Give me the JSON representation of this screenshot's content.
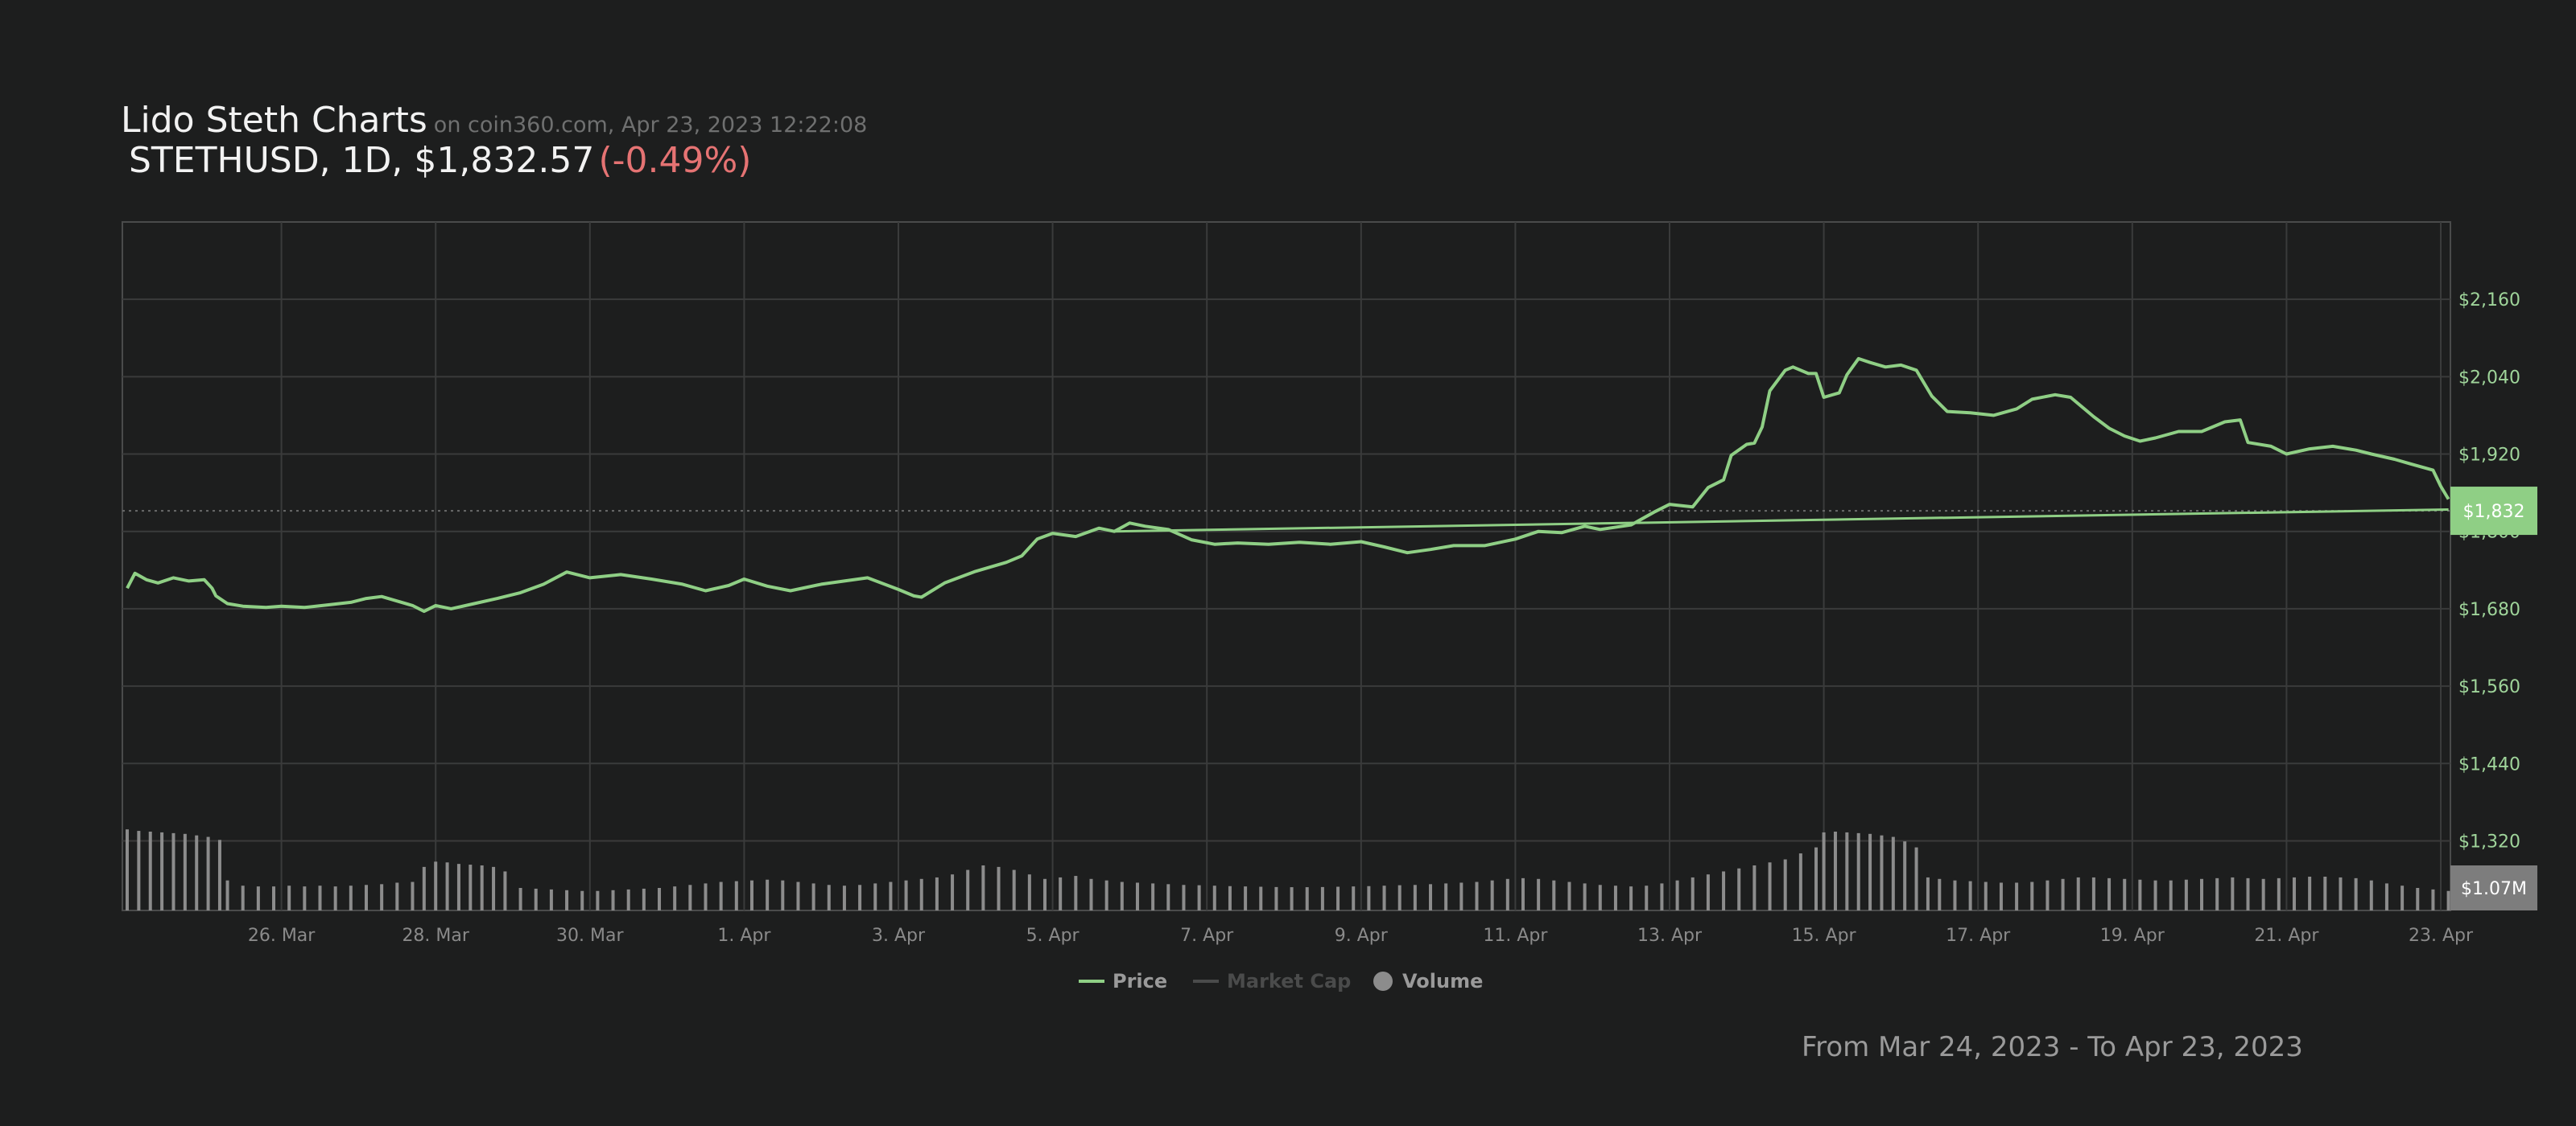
{
  "header": {
    "title": "Lido Steth Charts",
    "source": "on coin360.com, Apr 23, 2023 12:22:08",
    "ticker": "STETHUSD, 1D, $1,832.57",
    "change": "(-0.49%)"
  },
  "footer": {
    "date_range": "From Mar 24, 2023 - To Apr 23, 2023"
  },
  "colors": {
    "background": "#1d1e1e",
    "price_line": "#8fcf85",
    "volume_bar": "#8c8c8c",
    "grid": "#3a3b3b",
    "axis_label": "#9fd49a",
    "x_label": "#8a8a8a",
    "negative": "#e57373",
    "price_badge": "#8fcf85",
    "volume_badge": "#7d7d7d"
  },
  "chart_data": {
    "type": "line",
    "title": "Lido Steth Charts",
    "x_unit": "days since Mar 24, 2023",
    "xlim": [
      0,
      30.1
    ],
    "x_ticks": [
      {
        "label": "26. Mar",
        "day": 2
      },
      {
        "label": "28. Mar",
        "day": 4
      },
      {
        "label": "30. Mar",
        "day": 6
      },
      {
        "label": "1. Apr",
        "day": 8
      },
      {
        "label": "3. Apr",
        "day": 10
      },
      {
        "label": "5. Apr",
        "day": 12
      },
      {
        "label": "7. Apr",
        "day": 14
      },
      {
        "label": "9. Apr",
        "day": 16
      },
      {
        "label": "11. Apr",
        "day": 18
      },
      {
        "label": "13. Apr",
        "day": 20
      },
      {
        "label": "15. Apr",
        "day": 22
      },
      {
        "label": "17. Apr",
        "day": 24
      },
      {
        "label": "19. Apr",
        "day": 26
      },
      {
        "label": "21. Apr",
        "day": 28
      },
      {
        "label": "23. Apr",
        "day": 30
      }
    ],
    "ylim": [
      1212,
      2280
    ],
    "y_ticks": [
      {
        "label": "$2,160",
        "value": 2160
      },
      {
        "label": "$2,040",
        "value": 2040
      },
      {
        "label": "$1,920",
        "value": 1920
      },
      {
        "label": "$1,800",
        "value": 1800
      },
      {
        "label": "$1,680",
        "value": 1680
      },
      {
        "label": "$1,560",
        "value": 1560
      },
      {
        "label": "$1,440",
        "value": 1440
      },
      {
        "label": "$1,320",
        "value": 1320
      }
    ],
    "grid": true,
    "legend_position": "bottom-center",
    "current_price": {
      "label": "$1,832",
      "value": 1832
    },
    "current_volume": {
      "label": "$1.07M"
    },
    "series": [
      {
        "name": "Price",
        "color": "#8fcf85",
        "points": [
          [
            0.0,
            1712
          ],
          [
            0.1,
            1735
          ],
          [
            0.25,
            1725
          ],
          [
            0.4,
            1720
          ],
          [
            0.6,
            1728
          ],
          [
            0.8,
            1723
          ],
          [
            1.0,
            1725
          ],
          [
            1.1,
            1712
          ],
          [
            1.15,
            1700
          ],
          [
            1.3,
            1688
          ],
          [
            1.5,
            1684
          ],
          [
            1.8,
            1682
          ],
          [
            2.0,
            1684
          ],
          [
            2.3,
            1682
          ],
          [
            2.6,
            1686
          ],
          [
            2.9,
            1690
          ],
          [
            3.1,
            1696
          ],
          [
            3.3,
            1699
          ],
          [
            3.5,
            1692
          ],
          [
            3.7,
            1685
          ],
          [
            3.85,
            1676
          ],
          [
            4.0,
            1685
          ],
          [
            4.2,
            1680
          ],
          [
            4.5,
            1688
          ],
          [
            4.8,
            1696
          ],
          [
            5.1,
            1705
          ],
          [
            5.4,
            1718
          ],
          [
            5.7,
            1737
          ],
          [
            6.0,
            1728
          ],
          [
            6.4,
            1733
          ],
          [
            6.8,
            1726
          ],
          [
            7.2,
            1718
          ],
          [
            7.5,
            1708
          ],
          [
            7.8,
            1716
          ],
          [
            8.0,
            1726
          ],
          [
            8.3,
            1715
          ],
          [
            8.6,
            1708
          ],
          [
            9.0,
            1718
          ],
          [
            9.3,
            1723
          ],
          [
            9.6,
            1728
          ],
          [
            10.0,
            1710
          ],
          [
            10.2,
            1700
          ],
          [
            10.3,
            1698
          ],
          [
            10.6,
            1720
          ],
          [
            11.0,
            1738
          ],
          [
            11.4,
            1752
          ],
          [
            11.6,
            1762
          ],
          [
            11.8,
            1788
          ],
          [
            12.0,
            1797
          ],
          [
            12.3,
            1792
          ],
          [
            12.6,
            1805
          ],
          [
            12.8,
            1800
          ],
          [
            13.0,
            1813
          ],
          [
            13.2,
            1808
          ],
          [
            13.5,
            1803
          ],
          [
            13.8,
            1787
          ],
          [
            14.1,
            1780
          ],
          [
            14.4,
            1782
          ],
          [
            14.8,
            1780
          ],
          [
            15.2,
            1783
          ],
          [
            15.6,
            1780
          ],
          [
            16.0,
            1784
          ],
          [
            16.3,
            1776
          ],
          [
            16.6,
            1767
          ],
          [
            16.9,
            1772
          ],
          [
            17.2,
            1778
          ],
          [
            17.6,
            1778
          ],
          [
            18.0,
            1788
          ],
          [
            18.3,
            1800
          ],
          [
            18.6,
            1798
          ],
          [
            18.9,
            1808
          ],
          [
            19.1,
            1803
          ],
          [
            19.5,
            1810
          ],
          [
            19.8,
            1830
          ],
          [
            20.0,
            1842
          ],
          [
            20.3,
            1838
          ],
          [
            20.5,
            1868
          ],
          [
            20.7,
            1880
          ],
          [
            20.8,
            1918
          ],
          [
            21.0,
            1935
          ],
          [
            21.1,
            1937
          ],
          [
            21.2,
            1962
          ],
          [
            21.3,
            2018
          ],
          [
            21.5,
            2050
          ],
          [
            21.6,
            2055
          ],
          [
            21.8,
            2045
          ],
          [
            21.9,
            2045
          ],
          [
            22.0,
            2008
          ],
          [
            22.2,
            2015
          ],
          [
            22.3,
            2043
          ],
          [
            22.45,
            2068
          ],
          [
            22.6,
            2062
          ],
          [
            22.8,
            2055
          ],
          [
            23.0,
            2058
          ],
          [
            23.2,
            2050
          ],
          [
            23.4,
            2010
          ],
          [
            23.6,
            1986
          ],
          [
            23.9,
            1984
          ],
          [
            24.2,
            1980
          ],
          [
            24.5,
            1990
          ],
          [
            24.7,
            2005
          ],
          [
            25.0,
            2012
          ],
          [
            25.2,
            2008
          ],
          [
            25.5,
            1978
          ],
          [
            25.7,
            1960
          ],
          [
            25.9,
            1948
          ],
          [
            26.1,
            1940
          ],
          [
            26.3,
            1945
          ],
          [
            26.6,
            1955
          ],
          [
            26.9,
            1955
          ],
          [
            27.2,
            1970
          ],
          [
            27.4,
            1973
          ],
          [
            27.5,
            1938
          ],
          [
            27.8,
            1932
          ],
          [
            28.0,
            1920
          ],
          [
            28.3,
            1928
          ],
          [
            28.6,
            1932
          ],
          [
            28.9,
            1926
          ],
          [
            29.1,
            1920
          ],
          [
            29.4,
            1912
          ],
          [
            29.6,
            1905
          ],
          [
            29.9,
            1895
          ],
          [
            30.0,
            1870
          ],
          [
            30.1,
            1850
          ]
        ]
      },
      {
        "name": "Market Cap",
        "color": "#555555",
        "points": [
          [
            12.8,
            1800
          ],
          [
            30.1,
            1834
          ]
        ]
      }
    ],
    "volume": {
      "name": "Volume",
      "color": "#8c8c8c",
      "ylim": [
        0,
        600
      ],
      "bars": [
        [
          0.0,
          540
        ],
        [
          0.15,
          530
        ],
        [
          0.3,
          525
        ],
        [
          0.45,
          520
        ],
        [
          0.6,
          515
        ],
        [
          0.75,
          510
        ],
        [
          0.9,
          500
        ],
        [
          1.05,
          490
        ],
        [
          1.2,
          470
        ],
        [
          1.3,
          200
        ],
        [
          1.5,
          165
        ],
        [
          1.7,
          160
        ],
        [
          1.9,
          160
        ],
        [
          2.1,
          165
        ],
        [
          2.3,
          160
        ],
        [
          2.5,
          165
        ],
        [
          2.7,
          160
        ],
        [
          2.9,
          165
        ],
        [
          3.1,
          170
        ],
        [
          3.3,
          175
        ],
        [
          3.5,
          185
        ],
        [
          3.7,
          190
        ],
        [
          3.85,
          290
        ],
        [
          4.0,
          325
        ],
        [
          4.15,
          320
        ],
        [
          4.3,
          310
        ],
        [
          4.45,
          305
        ],
        [
          4.6,
          300
        ],
        [
          4.75,
          290
        ],
        [
          4.9,
          260
        ],
        [
          5.1,
          150
        ],
        [
          5.3,
          145
        ],
        [
          5.5,
          140
        ],
        [
          5.7,
          135
        ],
        [
          5.9,
          130
        ],
        [
          6.1,
          130
        ],
        [
          6.3,
          135
        ],
        [
          6.5,
          140
        ],
        [
          6.7,
          145
        ],
        [
          6.9,
          150
        ],
        [
          7.1,
          160
        ],
        [
          7.3,
          170
        ],
        [
          7.5,
          180
        ],
        [
          7.7,
          190
        ],
        [
          7.9,
          195
        ],
        [
          8.1,
          200
        ],
        [
          8.3,
          205
        ],
        [
          8.5,
          200
        ],
        [
          8.7,
          190
        ],
        [
          8.9,
          180
        ],
        [
          9.1,
          170
        ],
        [
          9.3,
          165
        ],
        [
          9.5,
          170
        ],
        [
          9.7,
          180
        ],
        [
          9.9,
          190
        ],
        [
          10.1,
          200
        ],
        [
          10.3,
          210
        ],
        [
          10.5,
          220
        ],
        [
          10.7,
          240
        ],
        [
          10.9,
          270
        ],
        [
          11.1,
          300
        ],
        [
          11.3,
          290
        ],
        [
          11.5,
          270
        ],
        [
          11.7,
          240
        ],
        [
          11.9,
          210
        ],
        [
          12.1,
          220
        ],
        [
          12.3,
          230
        ],
        [
          12.5,
          210
        ],
        [
          12.7,
          200
        ],
        [
          12.9,
          190
        ],
        [
          13.1,
          185
        ],
        [
          13.3,
          180
        ],
        [
          13.5,
          175
        ],
        [
          13.7,
          170
        ],
        [
          13.9,
          168
        ],
        [
          14.1,
          165
        ],
        [
          14.3,
          162
        ],
        [
          14.5,
          160
        ],
        [
          14.7,
          158
        ],
        [
          14.9,
          156
        ],
        [
          15.1,
          155
        ],
        [
          15.3,
          155
        ],
        [
          15.5,
          156
        ],
        [
          15.7,
          158
        ],
        [
          15.9,
          160
        ],
        [
          16.1,
          162
        ],
        [
          16.3,
          165
        ],
        [
          16.5,
          168
        ],
        [
          16.7,
          170
        ],
        [
          16.9,
          175
        ],
        [
          17.1,
          180
        ],
        [
          17.3,
          185
        ],
        [
          17.5,
          190
        ],
        [
          17.7,
          200
        ],
        [
          17.9,
          210
        ],
        [
          18.1,
          215
        ],
        [
          18.3,
          210
        ],
        [
          18.5,
          200
        ],
        [
          18.7,
          190
        ],
        [
          18.9,
          180
        ],
        [
          19.1,
          170
        ],
        [
          19.3,
          165
        ],
        [
          19.5,
          160
        ],
        [
          19.7,
          165
        ],
        [
          19.9,
          180
        ],
        [
          20.1,
          200
        ],
        [
          20.3,
          220
        ],
        [
          20.5,
          240
        ],
        [
          20.7,
          260
        ],
        [
          20.9,
          280
        ],
        [
          21.1,
          300
        ],
        [
          21.3,
          320
        ],
        [
          21.5,
          340
        ],
        [
          21.7,
          380
        ],
        [
          21.9,
          420
        ],
        [
          22.0,
          520
        ],
        [
          22.15,
          525
        ],
        [
          22.3,
          520
        ],
        [
          22.45,
          515
        ],
        [
          22.6,
          510
        ],
        [
          22.75,
          500
        ],
        [
          22.9,
          490
        ],
        [
          23.05,
          460
        ],
        [
          23.2,
          420
        ],
        [
          23.35,
          220
        ],
        [
          23.5,
          210
        ],
        [
          23.7,
          200
        ],
        [
          23.9,
          195
        ],
        [
          24.1,
          190
        ],
        [
          24.3,
          185
        ],
        [
          24.5,
          185
        ],
        [
          24.7,
          190
        ],
        [
          24.9,
          200
        ],
        [
          25.1,
          210
        ],
        [
          25.3,
          220
        ],
        [
          25.5,
          220
        ],
        [
          25.7,
          215
        ],
        [
          25.9,
          210
        ],
        [
          26.1,
          205
        ],
        [
          26.3,
          200
        ],
        [
          26.5,
          200
        ],
        [
          26.7,
          205
        ],
        [
          26.9,
          210
        ],
        [
          27.1,
          215
        ],
        [
          27.3,
          220
        ],
        [
          27.5,
          215
        ],
        [
          27.7,
          210
        ],
        [
          27.9,
          215
        ],
        [
          28.1,
          220
        ],
        [
          28.3,
          225
        ],
        [
          28.5,
          225
        ],
        [
          28.7,
          220
        ],
        [
          28.9,
          215
        ],
        [
          29.1,
          200
        ],
        [
          29.3,
          180
        ],
        [
          29.5,
          165
        ],
        [
          29.7,
          150
        ],
        [
          29.9,
          140
        ],
        [
          30.1,
          130
        ]
      ]
    }
  },
  "legend": {
    "price": "Price",
    "market_cap": "Market Cap",
    "volume": "Volume"
  }
}
